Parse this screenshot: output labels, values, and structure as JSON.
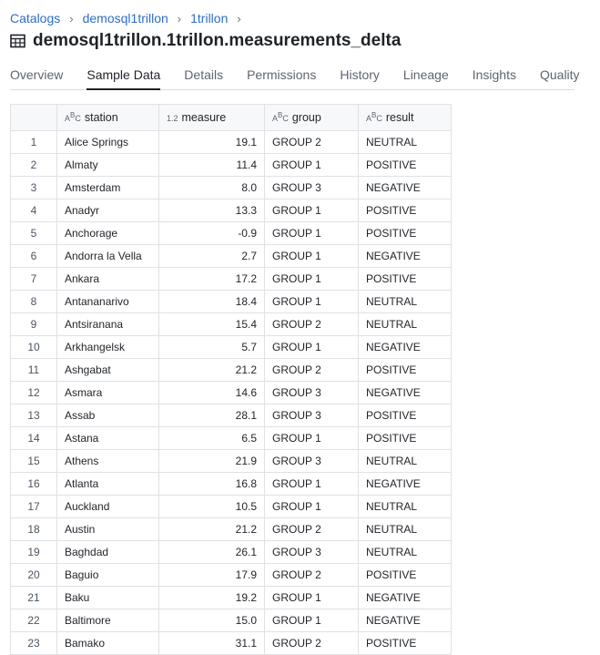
{
  "breadcrumb": [
    "Catalogs",
    "demosql1trillon",
    "1trillon"
  ],
  "title": "demosql1trillon.1trillon.measurements_delta",
  "tabs": [
    "Overview",
    "Sample Data",
    "Details",
    "Permissions",
    "History",
    "Lineage",
    "Insights",
    "Quality"
  ],
  "active_tab": "Sample Data",
  "table": {
    "columns": [
      {
        "name": "station",
        "type_badge": "ABC"
      },
      {
        "name": "measure",
        "type_badge": "1.2"
      },
      {
        "name": "group",
        "type_badge": "ABC"
      },
      {
        "name": "result",
        "type_badge": "ABC"
      }
    ],
    "rows": [
      [
        "1",
        "Alice Springs",
        "19.1",
        "GROUP 2",
        "NEUTRAL"
      ],
      [
        "2",
        "Almaty",
        "11.4",
        "GROUP 1",
        "POSITIVE"
      ],
      [
        "3",
        "Amsterdam",
        "8.0",
        "GROUP 3",
        "NEGATIVE"
      ],
      [
        "4",
        "Anadyr",
        "13.3",
        "GROUP 1",
        "POSITIVE"
      ],
      [
        "5",
        "Anchorage",
        "-0.9",
        "GROUP 1",
        "POSITIVE"
      ],
      [
        "6",
        "Andorra la Vella",
        "2.7",
        "GROUP 1",
        "NEGATIVE"
      ],
      [
        "7",
        "Ankara",
        "17.2",
        "GROUP 1",
        "POSITIVE"
      ],
      [
        "8",
        "Antananarivo",
        "18.4",
        "GROUP 1",
        "NEUTRAL"
      ],
      [
        "9",
        "Antsiranana",
        "15.4",
        "GROUP 2",
        "NEUTRAL"
      ],
      [
        "10",
        "Arkhangelsk",
        "5.7",
        "GROUP 1",
        "NEGATIVE"
      ],
      [
        "11",
        "Ashgabat",
        "21.2",
        "GROUP 2",
        "POSITIVE"
      ],
      [
        "12",
        "Asmara",
        "14.6",
        "GROUP 3",
        "NEGATIVE"
      ],
      [
        "13",
        "Assab",
        "28.1",
        "GROUP 3",
        "POSITIVE"
      ],
      [
        "14",
        "Astana",
        "6.5",
        "GROUP 1",
        "POSITIVE"
      ],
      [
        "15",
        "Athens",
        "21.9",
        "GROUP 3",
        "NEUTRAL"
      ],
      [
        "16",
        "Atlanta",
        "16.8",
        "GROUP 1",
        "NEGATIVE"
      ],
      [
        "17",
        "Auckland",
        "10.5",
        "GROUP 1",
        "NEUTRAL"
      ],
      [
        "18",
        "Austin",
        "21.2",
        "GROUP 2",
        "NEUTRAL"
      ],
      [
        "19",
        "Baghdad",
        "26.1",
        "GROUP 3",
        "NEUTRAL"
      ],
      [
        "20",
        "Baguio",
        "17.9",
        "GROUP 2",
        "POSITIVE"
      ],
      [
        "21",
        "Baku",
        "19.2",
        "GROUP 1",
        "NEGATIVE"
      ],
      [
        "22",
        "Baltimore",
        "15.0",
        "GROUP 1",
        "NEGATIVE"
      ],
      [
        "23",
        "Bamako",
        "31.1",
        "GROUP 2",
        "POSITIVE"
      ]
    ]
  },
  "icons": {
    "breadcrumb_separator": "chevron-right-icon",
    "title": "table-icon"
  },
  "colors": {
    "link": "#2f6ec2",
    "active_tab": "#1f2328",
    "header_bg": "#f7f8fa",
    "border": "#dfe1e5"
  }
}
